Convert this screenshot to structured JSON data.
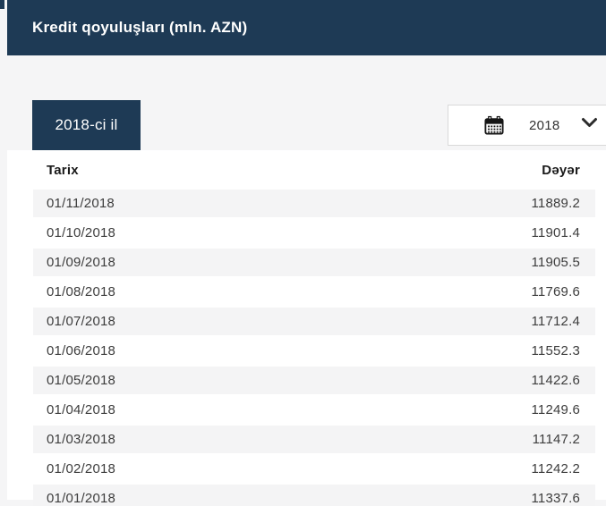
{
  "header": {
    "title": "Kredit qoyuluşları (mln. AZN)"
  },
  "filters": {
    "year_tab_label": "2018-ci il",
    "year_select": {
      "value": "2018",
      "calendar_icon": "calendar-icon",
      "chevron_icon": "chevron-down-icon"
    }
  },
  "table": {
    "columns": [
      "Tarix",
      "Dəyər"
    ],
    "rows": [
      {
        "date": "01/11/2018",
        "value": "11889.2"
      },
      {
        "date": "01/10/2018",
        "value": "11901.4"
      },
      {
        "date": "01/09/2018",
        "value": "11905.5"
      },
      {
        "date": "01/08/2018",
        "value": "11769.6"
      },
      {
        "date": "01/07/2018",
        "value": "11712.4"
      },
      {
        "date": "01/06/2018",
        "value": "11552.3"
      },
      {
        "date": "01/05/2018",
        "value": "11422.6"
      },
      {
        "date": "01/04/2018",
        "value": "11249.6"
      },
      {
        "date": "01/03/2018",
        "value": "11147.2"
      },
      {
        "date": "01/02/2018",
        "value": "11242.2"
      },
      {
        "date": "01/01/2018",
        "value": "11337.6"
      }
    ]
  },
  "colors": {
    "navy": "#1e3a55",
    "page_bg": "#f5f5f6",
    "row_alt": "#f4f4f5",
    "dropdown_border": "#d9d9d9",
    "cell_text": "#3d3d3d"
  }
}
